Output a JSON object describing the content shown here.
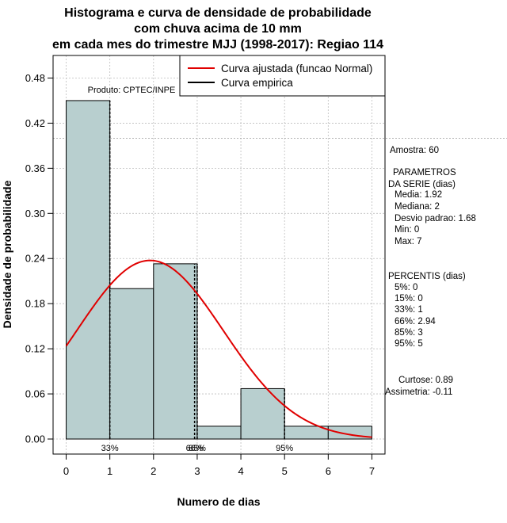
{
  "chart_data": {
    "type": "bar",
    "title_lines": [
      "Histograma e curva de densidade de probabilidade",
      "com chuva acima de 10 mm",
      "em cada mes do trimestre MJJ (1998-2017): Regiao 114"
    ],
    "xlabel": "Numero de dias",
    "ylabel": "Densidade de probabilidade",
    "xlim": [
      -0.3,
      7.3
    ],
    "ylim": [
      -0.02,
      0.51
    ],
    "x_ticks": [
      0,
      1,
      2,
      3,
      4,
      5,
      6,
      7
    ],
    "y_ticks": [
      0.0,
      0.06,
      0.12,
      0.18,
      0.24,
      0.3,
      0.36,
      0.42,
      0.48
    ],
    "y_tick_labels": [
      "0.00",
      "0.06",
      "0.12",
      "0.18",
      "0.24",
      "0.30",
      "0.36",
      "0.42",
      "0.48"
    ],
    "grid": true,
    "reference_line_y": 0.4,
    "bars": [
      {
        "x0": 0,
        "x1": 1,
        "value": 0.45
      },
      {
        "x0": 1,
        "x1": 2,
        "value": 0.2
      },
      {
        "x0": 2,
        "x1": 3,
        "value": 0.233
      },
      {
        "x0": 3,
        "x1": 4,
        "value": 0.017
      },
      {
        "x0": 4,
        "x1": 5,
        "value": 0.067
      },
      {
        "x0": 5,
        "x1": 6,
        "value": 0.017
      },
      {
        "x0": 6,
        "x1": 7,
        "value": 0.017
      }
    ],
    "bar_color": "#b8cfcf",
    "curve_color": "#e00000",
    "normal_fit": {
      "mean": 1.92,
      "sd": 1.68,
      "x_range": [
        0,
        7
      ]
    },
    "percentile_markers": [
      {
        "x": 1,
        "label": "33%"
      },
      {
        "x": 2.94,
        "label": "66%"
      },
      {
        "x": 3,
        "label": "85%"
      },
      {
        "x": 5,
        "label": "95%"
      }
    ],
    "legend": [
      {
        "label": "Curva ajustada (funcao Normal)",
        "color": "#e00000"
      },
      {
        "label": "Curva empirica",
        "color": "#000000"
      }
    ],
    "product_label": "Produto: CPTEC/INPE",
    "side_panel": {
      "sample": "Amostra: 60",
      "params_header_1": "PARAMETROS",
      "params_header_2": "DA SERIE (dias)",
      "params": [
        "Media: 1.92",
        "Mediana: 2",
        "Desvio padrao: 1.68",
        "Min: 0",
        "Max: 7"
      ],
      "percentis_header": "PERCENTIS (dias)",
      "percentis": [
        "5%: 0",
        "15%: 0",
        "33%: 1",
        "66%: 2.94",
        "85%: 3",
        "95%: 5"
      ],
      "curtose": "Curtose: 0.89",
      "assimetria": "Assimetria: -0.11"
    }
  }
}
